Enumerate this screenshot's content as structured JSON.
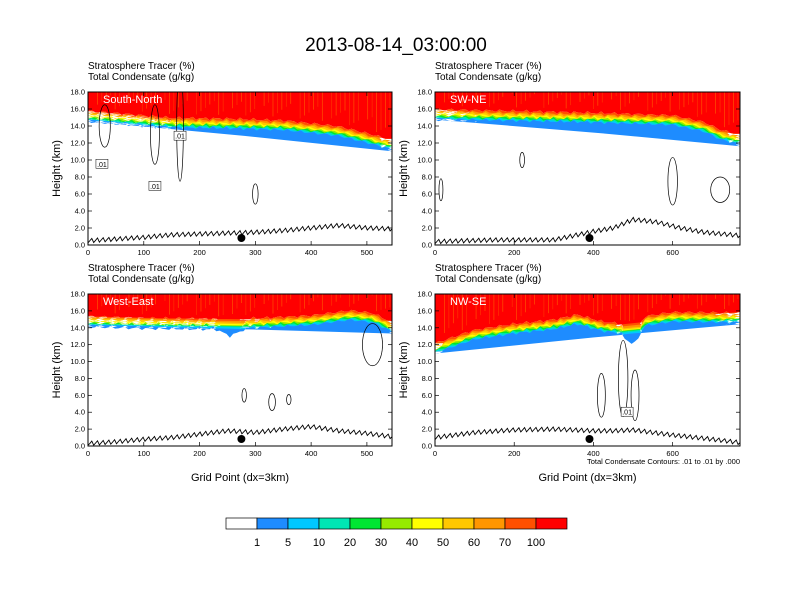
{
  "figure": {
    "title": "2013-08-14_03:00:00",
    "field_label": "Stratosphere Tracer",
    "field_units": "(%)",
    "contour_label": "Total Condensate",
    "contour_units": "(g/kg)",
    "x_axis_label": "Grid Point (dx=3km)",
    "contour_note": "Total Condensate Contours: .01 to .01 by .000",
    "contour_line_label": ".01"
  },
  "colorbar": {
    "colors": [
      "#ffffff",
      "#1e8cff",
      "#00c8ff",
      "#00e6b4",
      "#00e632",
      "#96eb00",
      "#ffff00",
      "#ffc800",
      "#ff9600",
      "#ff5000",
      "#ff0000"
    ],
    "labels": [
      "1",
      "5",
      "10",
      "20",
      "30",
      "40",
      "50",
      "60",
      "70",
      "100"
    ]
  },
  "chart_data": [
    {
      "type": "contour-cross-section",
      "name": "South-North",
      "xlabel": "",
      "ylabel": "Height (km)",
      "xlim": [
        0,
        545
      ],
      "ylim": [
        0,
        18
      ],
      "xticks": [
        0,
        100,
        200,
        300,
        400,
        500
      ],
      "yticks": [
        "0.0",
        "2.0",
        "4.0",
        "6.0",
        "8.0",
        "10.0",
        "12.0",
        "14.0",
        "16.0",
        "18.0"
      ],
      "tracer_base_km": [
        [
          0,
          14.6
        ],
        [
          60,
          14.3
        ],
        [
          150,
          13.8
        ],
        [
          250,
          13.7
        ],
        [
          350,
          13.5
        ],
        [
          450,
          12.8
        ],
        [
          500,
          12.0
        ],
        [
          545,
          11.2
        ]
      ],
      "terrain_km": [
        [
          0,
          0.5
        ],
        [
          50,
          0.7
        ],
        [
          100,
          0.9
        ],
        [
          150,
          1.2
        ],
        [
          200,
          1.3
        ],
        [
          250,
          1.4
        ],
        [
          300,
          1.5
        ],
        [
          350,
          1.7
        ],
        [
          400,
          2.0
        ],
        [
          450,
          2.3
        ],
        [
          500,
          2.0
        ],
        [
          545,
          1.9
        ]
      ],
      "marker_x": 275,
      "contour_labels": [
        [
          25,
          9.5
        ],
        [
          120,
          6.9
        ],
        [
          165,
          12.8
        ]
      ]
    },
    {
      "type": "contour-cross-section",
      "name": "SW-NE",
      "xlabel": "",
      "ylabel": "Height (km)",
      "xlim": [
        0,
        770
      ],
      "ylim": [
        0,
        18
      ],
      "xticks": [
        0,
        200,
        400,
        600
      ],
      "yticks": [
        "0.0",
        "2.0",
        "4.0",
        "6.0",
        "8.0",
        "10.0",
        "12.0",
        "14.0",
        "16.0",
        "18.0"
      ],
      "tracer_base_km": [
        [
          0,
          14.8
        ],
        [
          200,
          14.6
        ],
        [
          400,
          14.4
        ],
        [
          600,
          14.1
        ],
        [
          680,
          13.3
        ],
        [
          720,
          12.4
        ],
        [
          770,
          11.8
        ]
      ],
      "terrain_km": [
        [
          0,
          0.4
        ],
        [
          150,
          0.6
        ],
        [
          300,
          0.6
        ],
        [
          400,
          1.6
        ],
        [
          450,
          2.0
        ],
        [
          500,
          3.0
        ],
        [
          560,
          2.7
        ],
        [
          620,
          2.0
        ],
        [
          680,
          1.5
        ],
        [
          770,
          1.1
        ]
      ],
      "marker_x": 390,
      "contour_labels": []
    },
    {
      "type": "contour-cross-section",
      "name": "West-East",
      "xlabel": "Grid Point (dx=3km)",
      "ylabel": "Height (km)",
      "xlim": [
        0,
        545
      ],
      "ylim": [
        0,
        18
      ],
      "xticks": [
        0,
        100,
        200,
        300,
        400,
        500
      ],
      "yticks": [
        "0.0",
        "2.0",
        "4.0",
        "6.0",
        "8.0",
        "10.0",
        "12.0",
        "14.0",
        "16.0",
        "18.0"
      ],
      "tracer_base_km": [
        [
          0,
          14.2
        ],
        [
          100,
          14.0
        ],
        [
          230,
          13.9
        ],
        [
          255,
          13.1
        ],
        [
          280,
          13.9
        ],
        [
          400,
          14.3
        ],
        [
          470,
          14.9
        ],
        [
          510,
          14.6
        ],
        [
          545,
          13.5
        ]
      ],
      "terrain_km": [
        [
          0,
          0.3
        ],
        [
          50,
          0.5
        ],
        [
          100,
          0.8
        ],
        [
          150,
          1.0
        ],
        [
          200,
          1.4
        ],
        [
          250,
          1.8
        ],
        [
          300,
          1.6
        ],
        [
          350,
          2.0
        ],
        [
          400,
          2.3
        ],
        [
          450,
          1.8
        ],
        [
          500,
          1.5
        ],
        [
          545,
          1.1
        ]
      ],
      "marker_x": 275,
      "contour_labels": []
    },
    {
      "type": "contour-cross-section",
      "name": "NW-SE",
      "xlabel": "Grid Point (dx=3km)",
      "ylabel": "Height (km)",
      "xlim": [
        0,
        770
      ],
      "ylim": [
        0,
        18
      ],
      "xticks": [
        0,
        200,
        400,
        600
      ],
      "yticks": [
        "0.0",
        "2.0",
        "4.0",
        "6.0",
        "8.0",
        "10.0",
        "12.0",
        "14.0",
        "16.0",
        "18.0"
      ],
      "tracer_base_km": [
        [
          0,
          11.0
        ],
        [
          100,
          12.6
        ],
        [
          200,
          13.3
        ],
        [
          300,
          13.8
        ],
        [
          360,
          14.4
        ],
        [
          420,
          13.6
        ],
        [
          470,
          13.3
        ],
        [
          500,
          12.0
        ],
        [
          530,
          14.2
        ],
        [
          600,
          14.7
        ],
        [
          770,
          14.6
        ]
      ],
      "terrain_km": [
        [
          0,
          1.0
        ],
        [
          100,
          1.6
        ],
        [
          200,
          1.9
        ],
        [
          300,
          2.0
        ],
        [
          400,
          1.8
        ],
        [
          450,
          1.8
        ],
        [
          500,
          1.9
        ],
        [
          600,
          1.3
        ],
        [
          700,
          0.8
        ],
        [
          770,
          0.4
        ]
      ],
      "marker_x": 390,
      "contour_labels": [
        [
          485,
          4.0
        ]
      ]
    }
  ]
}
